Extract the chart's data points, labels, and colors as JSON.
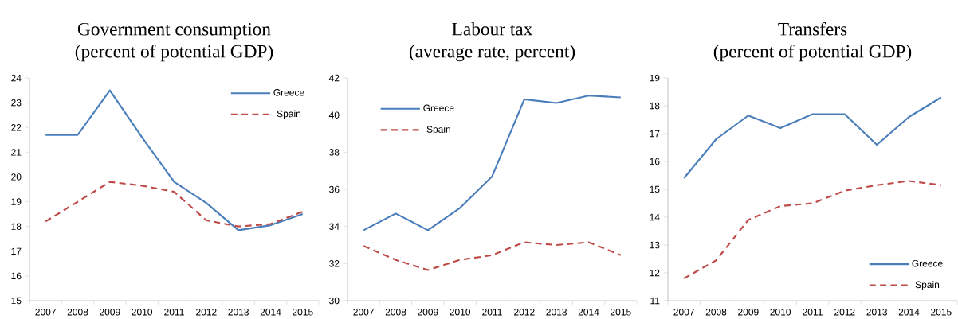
{
  "chart_data": [
    {
      "type": "line",
      "title": "Government consumption",
      "subtitle": "(percent of potential GDP)",
      "categories": [
        "2007",
        "2008",
        "2009",
        "2010",
        "2011",
        "2012",
        "2013",
        "2014",
        "2015"
      ],
      "series": [
        {
          "name": "Greece",
          "color": "#4a7ebb",
          "line_style": "solid",
          "values": [
            21.7,
            21.7,
            23.5,
            21.6,
            19.8,
            18.95,
            17.85,
            18.05,
            18.5
          ]
        },
        {
          "name": "Spain",
          "color": "#be4b48",
          "line_style": "dashed",
          "values": [
            18.2,
            19.0,
            19.8,
            19.65,
            19.4,
            18.25,
            18.0,
            18.1,
            18.6
          ]
        }
      ],
      "ylim": [
        15,
        24
      ],
      "yticks": [
        15,
        16,
        17,
        18,
        19,
        20,
        21,
        22,
        23,
        24
      ],
      "legend": "top right",
      "grid": false
    },
    {
      "type": "line",
      "title": "Labour tax",
      "subtitle": "(average rate, percent)",
      "categories": [
        "2007",
        "2008",
        "2009",
        "2010",
        "2011",
        "2012",
        "2013",
        "2014",
        "2015"
      ],
      "series": [
        {
          "name": "Greece",
          "color": "#4a7ebb",
          "line_style": "solid",
          "values": [
            33.8,
            34.7,
            33.8,
            35.0,
            36.7,
            40.85,
            40.65,
            41.05,
            40.95
          ]
        },
        {
          "name": "Spain",
          "color": "#be4b48",
          "line_style": "dashed",
          "values": [
            32.95,
            32.2,
            31.65,
            32.2,
            32.45,
            33.15,
            33.0,
            33.15,
            32.45
          ]
        }
      ],
      "ylim": [
        30,
        42
      ],
      "yticks": [
        30,
        32,
        34,
        36,
        38,
        40,
        42
      ],
      "legend": "top left",
      "grid": false
    },
    {
      "type": "line",
      "title": "Transfers",
      "subtitle": "(percent of potential GDP)",
      "categories": [
        "2007",
        "2008",
        "2009",
        "2010",
        "2011",
        "2012",
        "2013",
        "2014",
        "2015"
      ],
      "series": [
        {
          "name": "Greece",
          "color": "#4a7ebb",
          "line_style": "solid",
          "values": [
            15.4,
            16.8,
            17.65,
            17.2,
            17.7,
            17.7,
            16.6,
            17.6,
            18.3
          ]
        },
        {
          "name": "Spain",
          "color": "#be4b48",
          "line_style": "dashed",
          "values": [
            11.8,
            12.45,
            13.9,
            14.4,
            14.5,
            14.95,
            15.15,
            15.3,
            15.15
          ]
        }
      ],
      "ylim": [
        11,
        19
      ],
      "yticks": [
        11,
        12,
        13,
        14,
        15,
        16,
        17,
        18,
        19
      ],
      "legend": "bottom right",
      "grid": false
    }
  ]
}
